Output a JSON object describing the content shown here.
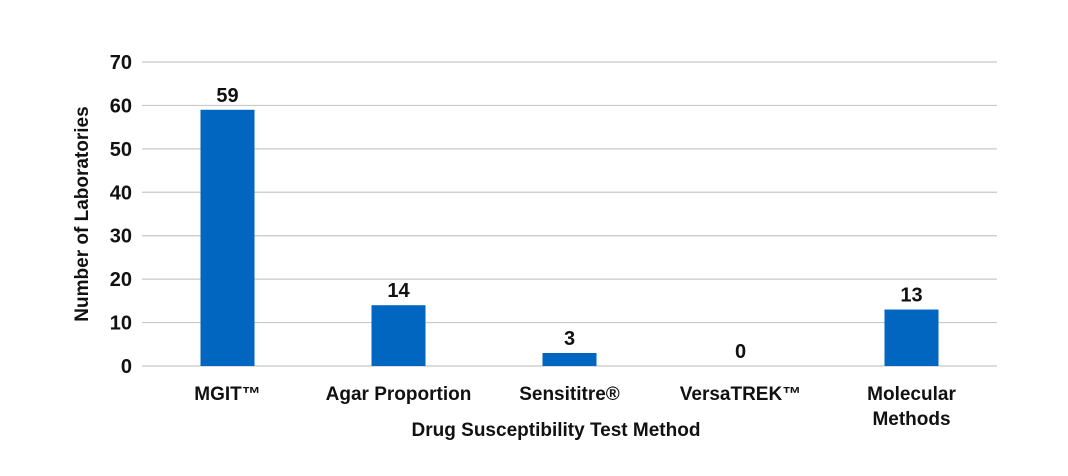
{
  "chart_data": {
    "type": "bar",
    "categories": [
      "MGIT™",
      "Agar Proportion",
      "Sensititre®",
      "VersaTREK™",
      "Molecular Methods"
    ],
    "category_lines": [
      [
        "MGIT™"
      ],
      [
        "Agar Proportion"
      ],
      [
        "Sensititre®"
      ],
      [
        "VersaTREK™"
      ],
      [
        "Molecular",
        "Methods"
      ]
    ],
    "values": [
      59,
      14,
      3,
      0,
      13
    ],
    "title": "",
    "xlabel": "Drug Susceptibility Test Method",
    "ylabel": "Number of Laboratories",
    "ylim": [
      0,
      70
    ],
    "yticks": [
      0,
      10,
      20,
      30,
      40,
      50,
      60,
      70
    ],
    "grid": true,
    "bar_color": "#0066c0",
    "grid_color": "#c8c8c8"
  }
}
